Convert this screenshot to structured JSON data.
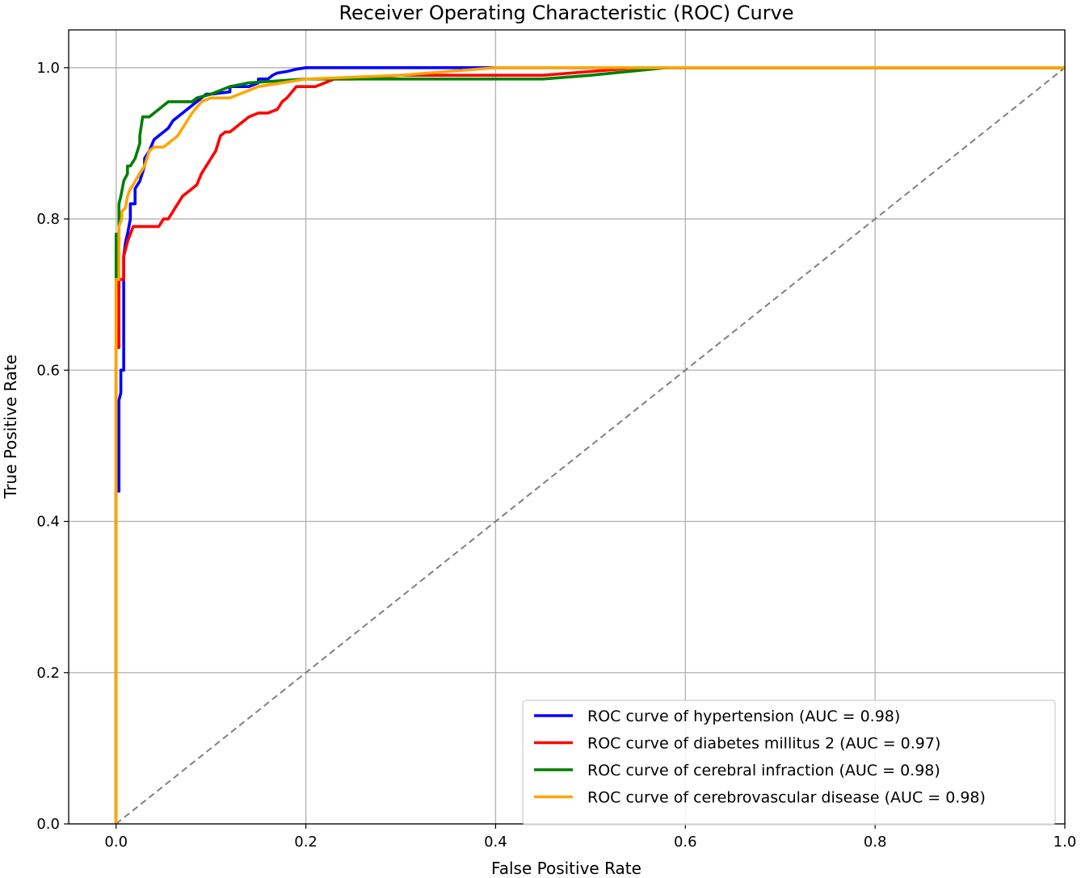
{
  "chart_data": {
    "type": "line",
    "title": "Receiver Operating Characteristic (ROC) Curve",
    "xlabel": "False Positive Rate",
    "ylabel": "True Positive Rate",
    "xlim": [
      -0.05,
      1.0
    ],
    "ylim": [
      0.0,
      1.05
    ],
    "xticks": [
      "0.0",
      "0.2",
      "0.4",
      "0.6",
      "0.8",
      "1.0"
    ],
    "yticks": [
      "0.0",
      "0.2",
      "0.4",
      "0.6",
      "0.8",
      "1.0"
    ],
    "grid": true,
    "legend_position": "lower-right",
    "series": [
      {
        "name": "ROC curve of hypertension (AUC = 0.98)",
        "color": "#0000ff",
        "x": [
          0.0,
          0.0,
          0.003,
          0.003,
          0.005,
          0.005,
          0.008,
          0.008,
          0.01,
          0.012,
          0.015,
          0.015,
          0.02,
          0.02,
          0.025,
          0.03,
          0.03,
          0.035,
          0.04,
          0.045,
          0.05,
          0.055,
          0.06,
          0.065,
          0.07,
          0.075,
          0.08,
          0.085,
          0.09,
          0.095,
          0.1,
          0.12,
          0.12,
          0.13,
          0.14,
          0.15,
          0.15,
          0.16,
          0.165,
          0.17,
          0.18,
          0.19,
          0.2,
          0.22,
          0.25,
          0.3,
          0.35,
          0.45,
          0.6,
          1.0
        ],
        "y": [
          0.0,
          0.44,
          0.44,
          0.56,
          0.57,
          0.6,
          0.6,
          0.75,
          0.77,
          0.78,
          0.8,
          0.82,
          0.82,
          0.84,
          0.85,
          0.87,
          0.88,
          0.89,
          0.905,
          0.91,
          0.915,
          0.92,
          0.93,
          0.935,
          0.94,
          0.945,
          0.95,
          0.955,
          0.96,
          0.965,
          0.965,
          0.968,
          0.975,
          0.975,
          0.975,
          0.98,
          0.985,
          0.985,
          0.99,
          0.993,
          0.995,
          0.998,
          1.0,
          1.0,
          1.0,
          1.0,
          1.0,
          1.0,
          1.0,
          1.0
        ]
      },
      {
        "name": "ROC curve of diabetes millitus 2 (AUC = 0.97)",
        "color": "#ff0000",
        "x": [
          0.0,
          0.0,
          0.003,
          0.003,
          0.008,
          0.008,
          0.012,
          0.015,
          0.018,
          0.02,
          0.025,
          0.045,
          0.05,
          0.055,
          0.06,
          0.065,
          0.07,
          0.075,
          0.08,
          0.085,
          0.09,
          0.095,
          0.1,
          0.105,
          0.11,
          0.115,
          0.12,
          0.13,
          0.14,
          0.15,
          0.16,
          0.17,
          0.175,
          0.18,
          0.19,
          0.2,
          0.21,
          0.22,
          0.23,
          0.25,
          0.3,
          0.35,
          0.45,
          0.5,
          0.55,
          1.0
        ],
        "y": [
          0.0,
          0.63,
          0.63,
          0.72,
          0.72,
          0.75,
          0.77,
          0.78,
          0.79,
          0.79,
          0.79,
          0.79,
          0.8,
          0.8,
          0.81,
          0.82,
          0.83,
          0.835,
          0.84,
          0.845,
          0.86,
          0.87,
          0.88,
          0.89,
          0.91,
          0.915,
          0.915,
          0.925,
          0.935,
          0.94,
          0.94,
          0.945,
          0.955,
          0.96,
          0.975,
          0.975,
          0.975,
          0.98,
          0.985,
          0.985,
          0.99,
          0.99,
          0.99,
          0.995,
          1.0,
          1.0
        ]
      },
      {
        "name": "ROC curve of cerebral infraction (AUC = 0.98)",
        "color": "#007f00",
        "x": [
          0.0,
          0.0,
          0.003,
          0.003,
          0.005,
          0.008,
          0.008,
          0.012,
          0.012,
          0.015,
          0.02,
          0.025,
          0.025,
          0.028,
          0.03,
          0.035,
          0.05,
          0.055,
          0.08,
          0.085,
          0.1,
          0.12,
          0.14,
          0.2,
          0.25,
          0.3,
          0.45,
          0.5,
          0.58,
          1.0
        ],
        "y": [
          0.0,
          0.78,
          0.78,
          0.82,
          0.83,
          0.85,
          0.85,
          0.86,
          0.87,
          0.87,
          0.88,
          0.9,
          0.91,
          0.935,
          0.935,
          0.935,
          0.95,
          0.955,
          0.955,
          0.96,
          0.965,
          0.975,
          0.98,
          0.985,
          0.985,
          0.985,
          0.985,
          0.99,
          1.0,
          1.0
        ]
      },
      {
        "name": "ROC curve of cerebrovascular disease (AUC = 0.98)",
        "color": "#ffa500",
        "x": [
          0.0,
          0.0,
          0.003,
          0.003,
          0.006,
          0.006,
          0.01,
          0.012,
          0.015,
          0.018,
          0.02,
          0.025,
          0.03,
          0.035,
          0.04,
          0.05,
          0.055,
          0.06,
          0.065,
          0.07,
          0.08,
          0.09,
          0.1,
          0.12,
          0.15,
          0.2,
          0.3,
          0.35,
          0.4,
          1.0
        ],
        "y": [
          0.0,
          0.72,
          0.72,
          0.79,
          0.8,
          0.81,
          0.815,
          0.83,
          0.84,
          0.845,
          0.85,
          0.86,
          0.87,
          0.89,
          0.895,
          0.895,
          0.9,
          0.905,
          0.91,
          0.92,
          0.94,
          0.955,
          0.96,
          0.96,
          0.975,
          0.985,
          0.99,
          0.995,
          1.0,
          1.0
        ]
      },
      {
        "name": "",
        "color": "#808080",
        "x": [
          0.0,
          1.0
        ],
        "y": [
          0.0,
          1.0
        ]
      }
    ]
  }
}
